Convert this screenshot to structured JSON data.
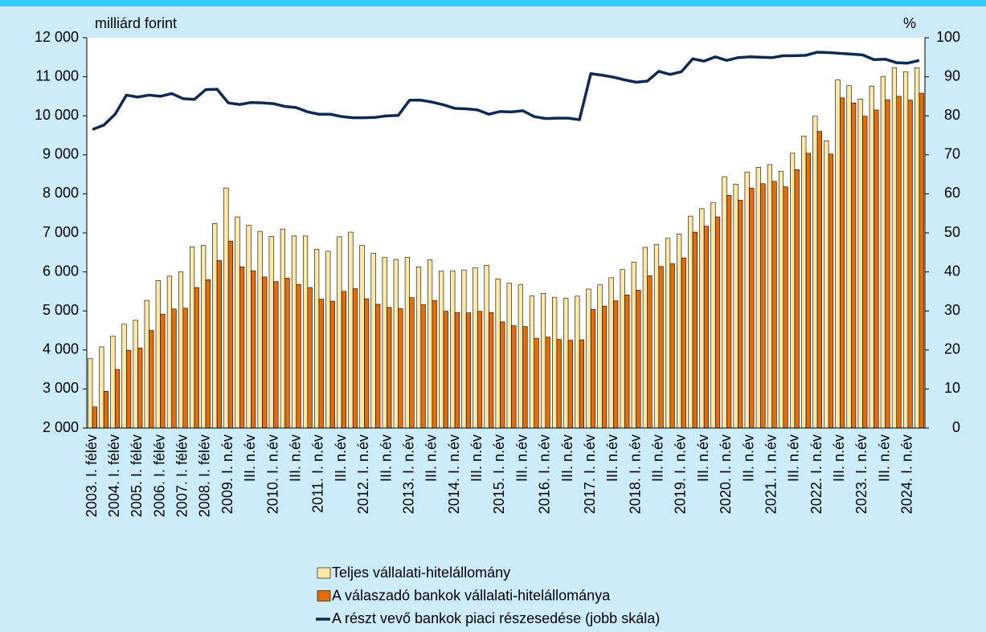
{
  "chart_data": {
    "type": "combo",
    "y_label": "milliárd forint",
    "y2_label": "%",
    "categories": [
      "2003. I. félév",
      null,
      "2004. I. félév",
      null,
      "2005. I. félév",
      null,
      "2006. I. félév",
      null,
      "2007. I. félév",
      null,
      "2008. I. félév",
      null,
      "2009. I. n.év",
      null,
      "III. n.év",
      null,
      "2010. I. n.év",
      null,
      "III. n.év",
      null,
      "2011. I. n.év",
      null,
      "III. n.év",
      null,
      "2012. I. n.év",
      null,
      "III. n.év",
      null,
      "2013. I. n.év",
      null,
      "III. n.év",
      null,
      "2014. I. n.év",
      null,
      "III. n.év",
      null,
      "2015. I. n.év",
      null,
      "III. n.év",
      null,
      "2016. I. n.év",
      null,
      "III. n.év",
      null,
      "2017. I. n.év",
      null,
      "III. n.év",
      null,
      "2018. I. n.év",
      null,
      "III. n.év",
      null,
      "2019. I. n.év",
      null,
      "III. n.év",
      null,
      "2020. I. n.év",
      null,
      "III. n.év",
      null,
      "2021. I. n.év",
      null,
      "III. n.év",
      null,
      "2022. I. n.év",
      null,
      "III. n.év",
      null,
      "2023. I. n.év",
      null,
      "III. n.év",
      null,
      "2024. I. n.év",
      null
    ],
    "series": [
      {
        "name": "Teljes vállalati-hitelállomány",
        "type": "bar",
        "color": "#fde9a6",
        "values": [
          3780,
          4080,
          4350,
          4660,
          4760,
          5270,
          5780,
          5890,
          6000,
          6640,
          6680,
          7240,
          8150,
          7410,
          7200,
          7040,
          6910,
          7100,
          6920,
          6920,
          6580,
          6530,
          6900,
          7020,
          6680,
          6480,
          6370,
          6320,
          6370,
          6130,
          6310,
          6020,
          6030,
          6050,
          6110,
          6170,
          5820,
          5710,
          5670,
          5390,
          5450,
          5350,
          5320,
          5380,
          5560,
          5670,
          5850,
          6060,
          6250,
          6630,
          6700,
          6860,
          6970,
          7430,
          7620,
          7780,
          8440,
          8250,
          8560,
          8680,
          8750,
          8580,
          9040,
          9480,
          9990,
          9360,
          10920,
          10770,
          10430,
          10760,
          11010,
          11230,
          11130,
          11230
        ]
      },
      {
        "name": "A válaszadó bankok vállalati-hitelállománya",
        "type": "bar",
        "color": "#e46c0a",
        "values": [
          2540,
          2940,
          3500,
          3990,
          4050,
          4500,
          4920,
          5050,
          5070,
          5600,
          5800,
          6290,
          6790,
          6130,
          6030,
          5870,
          5750,
          5840,
          5680,
          5600,
          5300,
          5250,
          5500,
          5570,
          5310,
          5170,
          5090,
          5060,
          5340,
          5160,
          5270,
          4990,
          4960,
          4950,
          4990,
          4960,
          4720,
          4620,
          4600,
          4300,
          4330,
          4270,
          4250,
          4260,
          5040,
          5120,
          5260,
          5410,
          5530,
          5900,
          6140,
          6210,
          6360,
          7020,
          7170,
          7410,
          7960,
          7840,
          8150,
          8260,
          8320,
          8180,
          8620,
          9040,
          9600,
          9020,
          10460,
          10330,
          9990,
          10150,
          10410,
          10500,
          10400,
          10580
        ]
      },
      {
        "name": "A részt vevő bankok piaci részesedése (jobb skála)",
        "type": "line",
        "axis": "y2",
        "color": "#0d2b52",
        "values": [
          76.5,
          77.6,
          80.4,
          85.3,
          84.8,
          85.3,
          85.0,
          85.7,
          84.4,
          84.2,
          86.7,
          86.8,
          83.3,
          82.9,
          83.4,
          83.3,
          83.1,
          82.4,
          82.1,
          81.0,
          80.4,
          80.4,
          79.8,
          79.5,
          79.5,
          79.6,
          80.0,
          80.1,
          84.0,
          84.0,
          83.5,
          82.8,
          81.9,
          81.8,
          81.5,
          80.4,
          81.1,
          81.0,
          81.3,
          79.8,
          79.3,
          79.4,
          79.4,
          79.0,
          90.8,
          90.4,
          89.9,
          89.2,
          88.6,
          88.9,
          91.4,
          90.6,
          91.3,
          94.6,
          94.0,
          95.1,
          94.2,
          94.9,
          95.1,
          95.0,
          94.9,
          95.4,
          95.4,
          95.5,
          96.3,
          96.2,
          96.0,
          95.8,
          95.6,
          94.4,
          94.5,
          93.6,
          93.5,
          94.2
        ]
      }
    ],
    "ylim": [
      2000,
      12000
    ],
    "yticks": [
      {
        "value": 2000,
        "label": "2 000"
      },
      {
        "value": 3000,
        "label": "3 000"
      },
      {
        "value": 4000,
        "label": "4 000"
      },
      {
        "value": 5000,
        "label": "5 000"
      },
      {
        "value": 6000,
        "label": "6 000"
      },
      {
        "value": 7000,
        "label": "7 000"
      },
      {
        "value": 8000,
        "label": "8 000"
      },
      {
        "value": 9000,
        "label": "9 000"
      },
      {
        "value": 10000,
        "label": "10 000"
      },
      {
        "value": 11000,
        "label": "11 000"
      },
      {
        "value": 12000,
        "label": "12 000"
      }
    ],
    "y2lim": [
      0,
      100
    ],
    "y2ticks": [
      0,
      10,
      20,
      30,
      40,
      50,
      60,
      70,
      80,
      90,
      100
    ],
    "grid": false
  }
}
